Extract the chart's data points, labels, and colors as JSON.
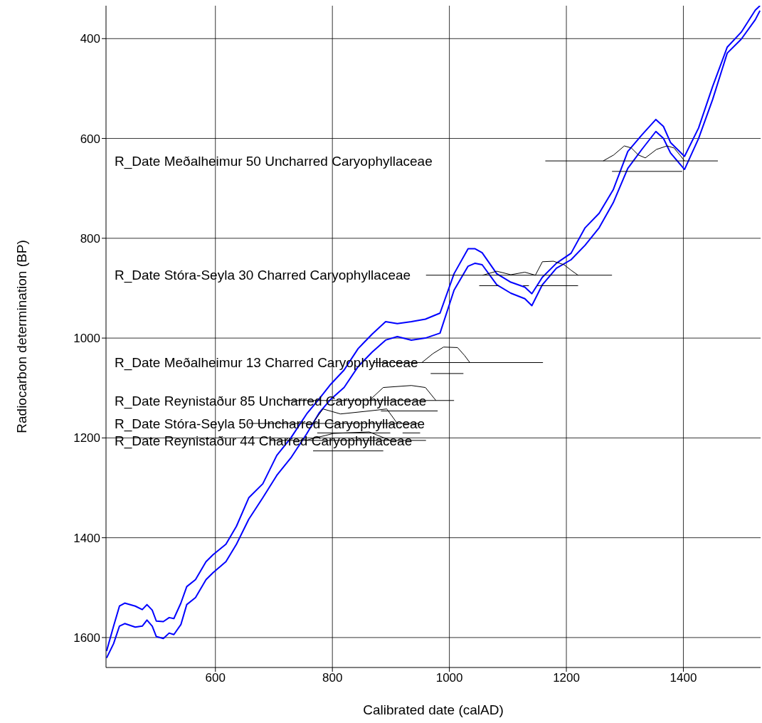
{
  "chart_data": {
    "type": "line",
    "xlabel": "Calibrated date (calAD)",
    "ylabel": "Radiocarbon determination (BP)",
    "xlim": [
      413,
      1532
    ],
    "ylim": [
      1660,
      334
    ],
    "xticks": [
      600,
      800,
      1000,
      1200,
      1400
    ],
    "yticks": [
      400,
      600,
      800,
      1000,
      1200,
      1400,
      1600
    ],
    "grid": true,
    "marker": "none",
    "line_style": "solid",
    "legend": "left",
    "series": [
      {
        "color": "#0000ff",
        "x": [
          414,
          426,
          436,
          445,
          463,
          475,
          483,
          492,
          499,
          511,
          521,
          529,
          541,
          551,
          566,
          584,
          596,
          618,
          636,
          657,
          681,
          705,
          729,
          756,
          778,
          796,
          820,
          844,
          868,
          891,
          911,
          935,
          959,
          984,
          1008,
          1032,
          1044,
          1056,
          1081,
          1105,
          1129,
          1141,
          1159,
          1183,
          1208,
          1232,
          1256,
          1280,
          1305,
          1329,
          1353,
          1366,
          1378,
          1402,
          1426,
          1450,
          1475,
          1499,
          1523,
          1531
        ],
        "values": [
          1627,
          1577,
          1537,
          1531,
          1537,
          1544,
          1534,
          1545,
          1567,
          1568,
          1560,
          1562,
          1531,
          1498,
          1484,
          1448,
          1434,
          1413,
          1377,
          1320,
          1292,
          1235,
          1200,
          1152,
          1121,
          1094,
          1064,
          1021,
          992,
          967,
          971,
          967,
          962,
          950,
          871,
          821,
          821,
          829,
          871,
          888,
          898,
          911,
          878,
          850,
          830,
          779,
          750,
          703,
          626,
          593,
          562,
          576,
          608,
          636,
          579,
          496,
          417,
          387,
          343,
          334
        ]
      },
      {
        "color": "#0000ff",
        "x": [
          414,
          426,
          436,
          445,
          463,
          475,
          483,
          492,
          499,
          511,
          521,
          529,
          541,
          551,
          566,
          584,
          596,
          618,
          636,
          657,
          681,
          705,
          729,
          756,
          778,
          796,
          820,
          844,
          868,
          891,
          911,
          935,
          959,
          984,
          1008,
          1032,
          1044,
          1056,
          1081,
          1105,
          1129,
          1141,
          1159,
          1183,
          1208,
          1232,
          1256,
          1280,
          1305,
          1329,
          1353,
          1366,
          1378,
          1402,
          1426,
          1450,
          1475,
          1499,
          1523,
          1531
        ],
        "values": [
          1641,
          1612,
          1577,
          1572,
          1579,
          1577,
          1565,
          1577,
          1598,
          1602,
          1591,
          1594,
          1574,
          1534,
          1520,
          1484,
          1470,
          1448,
          1413,
          1363,
          1320,
          1275,
          1240,
          1192,
          1149,
          1124,
          1099,
          1057,
          1028,
          1004,
          997,
          1004,
          1000,
          990,
          904,
          856,
          850,
          853,
          893,
          910,
          921,
          935,
          893,
          860,
          843,
          814,
          779,
          729,
          660,
          622,
          586,
          600,
          629,
          662,
          600,
          522,
          429,
          401,
          362,
          344
        ]
      },
      {
        "name": "R_Date Meðalheimur 50 Uncharred Caryophyllaceae",
        "color": "#000000",
        "x": [
          1164,
          1459
        ],
        "values": [
          645,
          645
        ]
      },
      {
        "color": "#000000",
        "x": [
          1263,
          1281,
          1299,
          1311,
          1323,
          1335,
          1354,
          1372,
          1384,
          1394,
          1402
        ],
        "values": [
          645,
          633,
          615,
          619,
          633,
          639,
          622,
          615,
          619,
          633,
          645
        ]
      },
      {
        "color": "#000000",
        "x": [
          1278,
          1398
        ],
        "values": [
          666,
          666
        ]
      },
      {
        "name": "R_Date Stóra-Seyla 30 Charred Caryophyllaceae",
        "color": "#000000",
        "x": [
          960,
          1278
        ],
        "values": [
          874,
          874
        ]
      },
      {
        "color": "#000000",
        "x": [
          1057,
          1081,
          1105,
          1129,
          1147,
          1159,
          1178,
          1196,
          1208,
          1220
        ],
        "values": [
          874,
          866,
          873,
          868,
          874,
          847,
          846,
          853,
          864,
          874
        ]
      },
      {
        "color": "#000000",
        "x": [
          1051,
          1084,
          1085,
          1126,
          1136,
          1137,
          1150,
          1220
        ],
        "values": [
          895,
          895,
          null,
          895,
          895,
          null,
          895,
          895
        ]
      },
      {
        "name": "R_Date Meðalheimur 13 Charred Caryophyllaceae",
        "color": "#000000",
        "x": [
          869,
          1160
        ],
        "values": [
          1049,
          1049
        ]
      },
      {
        "color": "#000000",
        "x": [
          953,
          972,
          990,
          1014,
          1026,
          1035
        ],
        "values": [
          1049,
          1031,
          1018,
          1019,
          1035,
          1049
        ]
      },
      {
        "color": "#000000",
        "x": [
          968,
          1024
        ],
        "values": [
          1071,
          1071
        ]
      },
      {
        "name": "R_Date Reynistaður 85 Uncharred Caryophyllaceae",
        "color": "#000000",
        "x": [
          717,
          1008
        ],
        "values": [
          1125,
          1125
        ]
      },
      {
        "color": "#000000",
        "x": [
          863,
          887,
          935,
          959,
          977
        ],
        "values": [
          1125,
          1099,
          1095,
          1099,
          1125
        ]
      },
      {
        "color": "#000000",
        "x": [
          883,
          980
        ],
        "values": [
          1146,
          1146
        ]
      },
      {
        "name": "R_Date Stóra-Seyla 50 Uncharred Caryophyllaceae",
        "color": "#000000",
        "x": [
          657,
          948
        ],
        "values": [
          1171,
          1171
        ]
      },
      {
        "color": "#000000",
        "x": [
          766,
          784,
          814,
          863,
          893,
          911
        ],
        "values": [
          1171,
          1142,
          1152,
          1146,
          1142,
          1171
        ]
      },
      {
        "color": "#000000",
        "x": [
          774,
          899,
          900,
          920,
          950
        ],
        "values": [
          1190,
          1190,
          null,
          1190,
          1190
        ]
      },
      {
        "name": "R_Date Reynistaður 44 Charred Caryophyllaceae",
        "color": "#000000",
        "x": [
          693,
          960
        ],
        "values": [
          1205,
          1205
        ]
      },
      {
        "color": "#000000",
        "x": [
          754,
          802,
          863,
          899
        ],
        "values": [
          1205,
          1191,
          1188,
          1205
        ]
      },
      {
        "color": "#000000",
        "x": [
          767,
          887
        ],
        "values": [
          1226,
          1226
        ]
      }
    ]
  }
}
